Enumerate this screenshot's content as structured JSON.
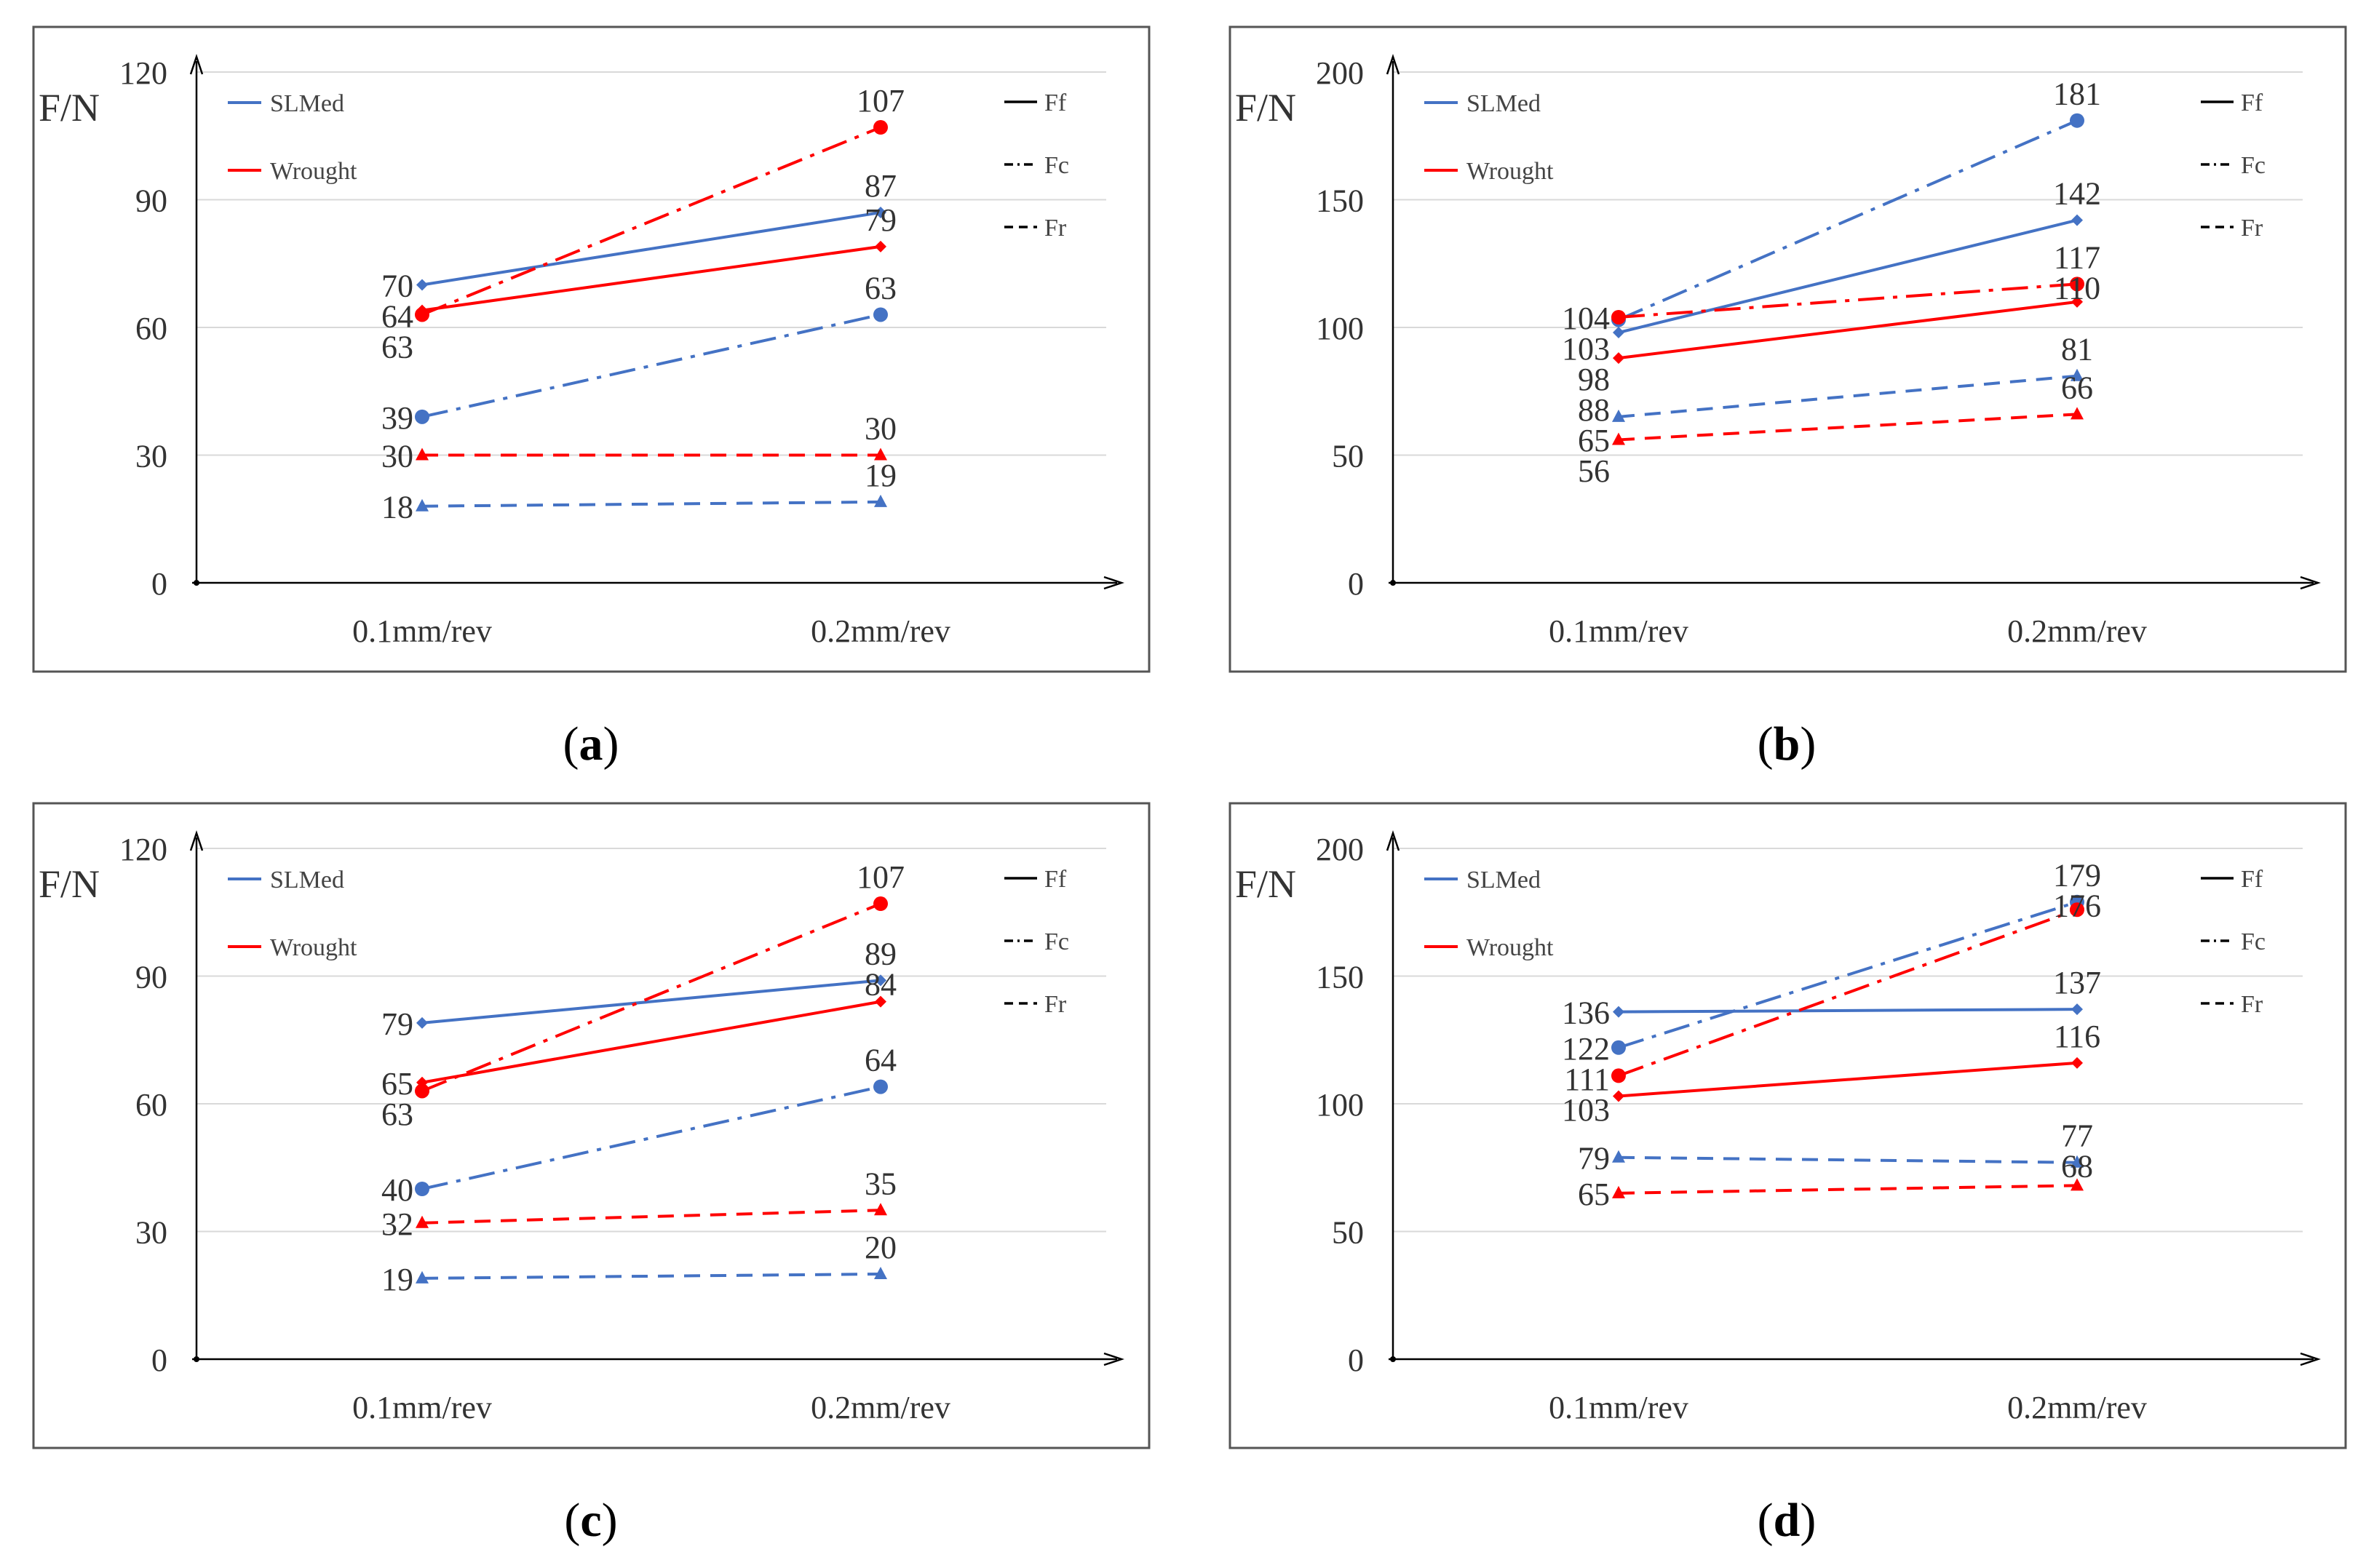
{
  "colors": {
    "slm": "#4472C4",
    "wrought": "#FF0000",
    "axis": "#000000",
    "grid": "#D9D9D9",
    "frame": "#555555"
  },
  "legend_materials": [
    {
      "name": "SLMed",
      "color": "#4472C4"
    },
    {
      "name": "Wrought",
      "color": "#FF0000"
    }
  ],
  "legend_forces": [
    {
      "name": "Ff",
      "dash": "solid"
    },
    {
      "name": "Fc",
      "dash": "dashdot"
    },
    {
      "name": "Fr",
      "dash": "dashed"
    }
  ],
  "chart_data": [
    {
      "id": "a",
      "caption_open": "(",
      "caption_letter": "a",
      "caption_close": ")",
      "type": "line",
      "ylabel": "F/N",
      "ylim": [
        0,
        120
      ],
      "yticks": [
        0,
        30,
        60,
        90,
        120
      ],
      "categories": [
        "0.1mm/rev",
        "0.2mm/rev"
      ],
      "grid": true,
      "series": [
        {
          "material": "SLMed",
          "force": "Ff",
          "values": [
            70,
            87
          ]
        },
        {
          "material": "Wrought",
          "force": "Ff",
          "values": [
            64,
            79
          ]
        },
        {
          "material": "SLMed",
          "force": "Fc",
          "values": [
            39,
            63
          ]
        },
        {
          "material": "Wrought",
          "force": "Fc",
          "values": [
            63,
            107
          ]
        },
        {
          "material": "SLMed",
          "force": "Fr",
          "values": [
            18,
            19
          ]
        },
        {
          "material": "Wrought",
          "force": "Fr",
          "values": [
            30,
            30
          ]
        }
      ]
    },
    {
      "id": "b",
      "caption_open": "(",
      "caption_letter": "b",
      "caption_close": ")",
      "type": "line",
      "ylabel": "F/N",
      "ylim": [
        0,
        200
      ],
      "yticks": [
        0,
        50,
        100,
        150,
        200
      ],
      "categories": [
        "0.1mm/rev",
        "0.2mm/rev"
      ],
      "grid": true,
      "series": [
        {
          "material": "SLMed",
          "force": "Ff",
          "values": [
            98,
            142
          ]
        },
        {
          "material": "Wrought",
          "force": "Ff",
          "values": [
            88,
            110
          ]
        },
        {
          "material": "SLMed",
          "force": "Fc",
          "values": [
            103,
            181
          ]
        },
        {
          "material": "Wrought",
          "force": "Fc",
          "values": [
            104,
            117
          ]
        },
        {
          "material": "SLMed",
          "force": "Fr",
          "values": [
            65,
            81
          ]
        },
        {
          "material": "Wrought",
          "force": "Fr",
          "values": [
            56,
            66
          ]
        }
      ]
    },
    {
      "id": "c",
      "caption_open": "(",
      "caption_letter": "c",
      "caption_close": ")",
      "type": "line",
      "ylabel": "F/N",
      "ylim": [
        0,
        120
      ],
      "yticks": [
        0,
        30,
        60,
        90,
        120
      ],
      "categories": [
        "0.1mm/rev",
        "0.2mm/rev"
      ],
      "grid": true,
      "series": [
        {
          "material": "SLMed",
          "force": "Ff",
          "values": [
            79,
            89
          ]
        },
        {
          "material": "Wrought",
          "force": "Ff",
          "values": [
            65,
            84
          ]
        },
        {
          "material": "SLMed",
          "force": "Fc",
          "values": [
            40,
            64
          ]
        },
        {
          "material": "Wrought",
          "force": "Fc",
          "values": [
            63,
            107
          ]
        },
        {
          "material": "SLMed",
          "force": "Fr",
          "values": [
            19,
            20
          ]
        },
        {
          "material": "Wrought",
          "force": "Fr",
          "values": [
            32,
            35
          ]
        }
      ]
    },
    {
      "id": "d",
      "caption_open": "(",
      "caption_letter": "d",
      "caption_close": ")",
      "type": "line",
      "ylabel": "F/N",
      "ylim": [
        0,
        200
      ],
      "yticks": [
        0,
        50,
        100,
        150,
        200
      ],
      "categories": [
        "0.1mm/rev",
        "0.2mm/rev"
      ],
      "grid": true,
      "series": [
        {
          "material": "SLMed",
          "force": "Ff",
          "values": [
            136,
            137
          ]
        },
        {
          "material": "Wrought",
          "force": "Ff",
          "values": [
            103,
            116
          ]
        },
        {
          "material": "SLMed",
          "force": "Fc",
          "values": [
            122,
            179
          ]
        },
        {
          "material": "Wrought",
          "force": "Fc",
          "values": [
            111,
            176
          ]
        },
        {
          "material": "SLMed",
          "force": "Fr",
          "values": [
            79,
            77
          ]
        },
        {
          "material": "Wrought",
          "force": "Fr",
          "values": [
            65,
            68
          ]
        }
      ]
    }
  ]
}
